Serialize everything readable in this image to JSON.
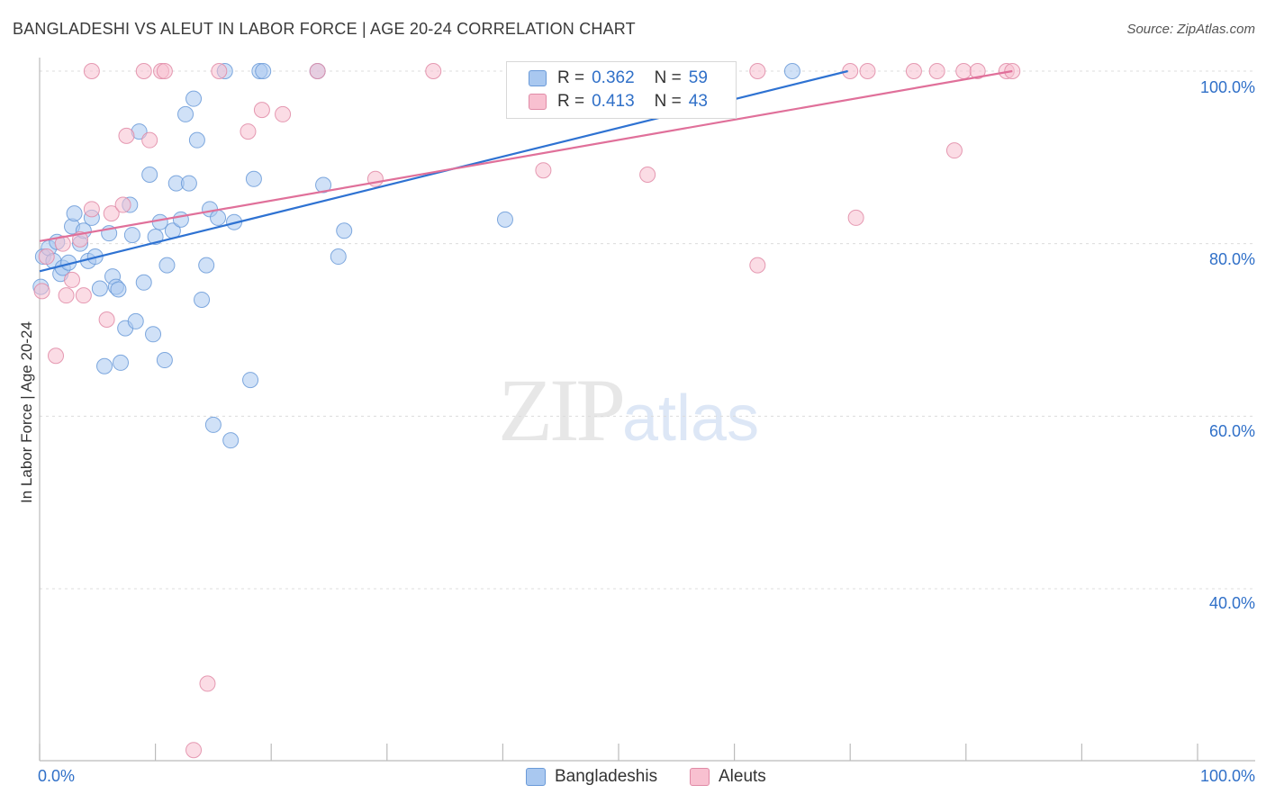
{
  "title": "BANGLADESHI VS ALEUT IN LABOR FORCE | AGE 20-24 CORRELATION CHART",
  "source": "Source: ZipAtlas.com",
  "watermark": {
    "zip": "ZIP",
    "atlas": "atlas"
  },
  "stats": [
    {
      "r_label": "R =",
      "r": "0.362",
      "n_label": "N =",
      "n": "59",
      "color": "#a9c8f0",
      "border": "#6a9ad8"
    },
    {
      "r_label": "R =",
      "r": "0.413",
      "n_label": "N =",
      "n": "43",
      "color": "#f8c0d0",
      "border": "#e08aa6"
    }
  ],
  "legend": [
    "Bangladeshis",
    "Aleuts"
  ],
  "x_ticks": [
    "0.0%",
    "100.0%"
  ],
  "y_ticks": [
    "100.0%",
    "80.0%",
    "60.0%",
    "40.0%"
  ],
  "chart_data": {
    "type": "scatter",
    "title": "BANGLADESHI VS ALEUT IN LABOR FORCE | AGE 20-24 CORRELATION CHART",
    "xlabel": "",
    "ylabel": "In Labor Force | Age 20-24",
    "xlim": [
      0,
      100
    ],
    "ylim": [
      22,
      103
    ],
    "grid": true,
    "legend_position": "bottom",
    "series": [
      {
        "name": "Bangladeshis",
        "color": "#6a9ad8",
        "fill": "#a9c8f0",
        "trend": [
          [
            0,
            76.8
          ],
          [
            69.8,
            100
          ]
        ],
        "points": [
          [
            0.3,
            78.5
          ],
          [
            0.8,
            79.5
          ],
          [
            1.2,
            78.0
          ],
          [
            1.5,
            80.2
          ],
          [
            1.8,
            76.5
          ],
          [
            2.0,
            77.2
          ],
          [
            2.5,
            77.8
          ],
          [
            2.8,
            82.0
          ],
          [
            3.0,
            83.5
          ],
          [
            3.5,
            80.0
          ],
          [
            3.8,
            81.5
          ],
          [
            4.2,
            78.0
          ],
          [
            4.5,
            83.0
          ],
          [
            4.8,
            78.5
          ],
          [
            5.2,
            74.8
          ],
          [
            5.6,
            65.8
          ],
          [
            6.0,
            81.2
          ],
          [
            6.3,
            76.2
          ],
          [
            6.6,
            75.0
          ],
          [
            6.8,
            74.7
          ],
          [
            7.0,
            66.2
          ],
          [
            7.4,
            70.2
          ],
          [
            7.8,
            84.5
          ],
          [
            8.0,
            81.0
          ],
          [
            8.3,
            71.0
          ],
          [
            8.6,
            93.0
          ],
          [
            9.0,
            75.5
          ],
          [
            9.5,
            88.0
          ],
          [
            9.8,
            69.5
          ],
          [
            10.0,
            80.8
          ],
          [
            10.4,
            82.5
          ],
          [
            10.8,
            66.5
          ],
          [
            11.0,
            77.5
          ],
          [
            11.5,
            81.5
          ],
          [
            11.8,
            87.0
          ],
          [
            12.2,
            82.8
          ],
          [
            12.6,
            95.0
          ],
          [
            12.9,
            87.0
          ],
          [
            13.3,
            96.8
          ],
          [
            13.6,
            92.0
          ],
          [
            14.0,
            73.5
          ],
          [
            14.4,
            77.5
          ],
          [
            14.7,
            84.0
          ],
          [
            15.0,
            59.0
          ],
          [
            15.4,
            83.0
          ],
          [
            16.0,
            100
          ],
          [
            16.5,
            57.2
          ],
          [
            16.8,
            82.5
          ],
          [
            18.2,
            64.2
          ],
          [
            18.5,
            87.5
          ],
          [
            19.0,
            100
          ],
          [
            19.3,
            100
          ],
          [
            24.0,
            100
          ],
          [
            24.5,
            86.8
          ],
          [
            25.8,
            78.5
          ],
          [
            26.3,
            81.5
          ],
          [
            40.2,
            82.8
          ],
          [
            65.0,
            100
          ],
          [
            0.1,
            75.0
          ]
        ]
      },
      {
        "name": "Aleuts",
        "color": "#e08aa6",
        "fill": "#f8c0d0",
        "trend": [
          [
            0,
            80.3
          ],
          [
            84.0,
            100
          ]
        ],
        "points": [
          [
            0.2,
            74.5
          ],
          [
            0.6,
            78.5
          ],
          [
            1.4,
            67.0
          ],
          [
            2.0,
            80.0
          ],
          [
            2.3,
            74.0
          ],
          [
            2.8,
            75.8
          ],
          [
            3.5,
            80.5
          ],
          [
            3.8,
            74.0
          ],
          [
            4.5,
            84.0
          ],
          [
            4.5,
            100
          ],
          [
            5.8,
            71.2
          ],
          [
            6.2,
            83.5
          ],
          [
            7.2,
            84.5
          ],
          [
            7.5,
            92.5
          ],
          [
            9.0,
            100
          ],
          [
            9.5,
            92.0
          ],
          [
            10.5,
            100
          ],
          [
            10.8,
            100
          ],
          [
            14.5,
            29.0
          ],
          [
            13.3,
            21.3
          ],
          [
            15.5,
            100
          ],
          [
            18.0,
            93.0
          ],
          [
            19.2,
            95.5
          ],
          [
            21.0,
            95.0
          ],
          [
            24.0,
            100
          ],
          [
            29.0,
            87.5
          ],
          [
            34.0,
            100
          ],
          [
            43.5,
            88.5
          ],
          [
            50.0,
            100
          ],
          [
            52.5,
            88.0
          ],
          [
            58.0,
            100
          ],
          [
            62.0,
            77.5
          ],
          [
            62.0,
            100
          ],
          [
            70.0,
            100
          ],
          [
            70.5,
            83.0
          ],
          [
            71.5,
            100
          ],
          [
            75.5,
            100
          ],
          [
            77.5,
            100
          ],
          [
            79.8,
            100
          ],
          [
            81.0,
            100
          ],
          [
            83.5,
            100
          ],
          [
            79.0,
            90.8
          ],
          [
            84.0,
            100
          ]
        ]
      }
    ]
  }
}
